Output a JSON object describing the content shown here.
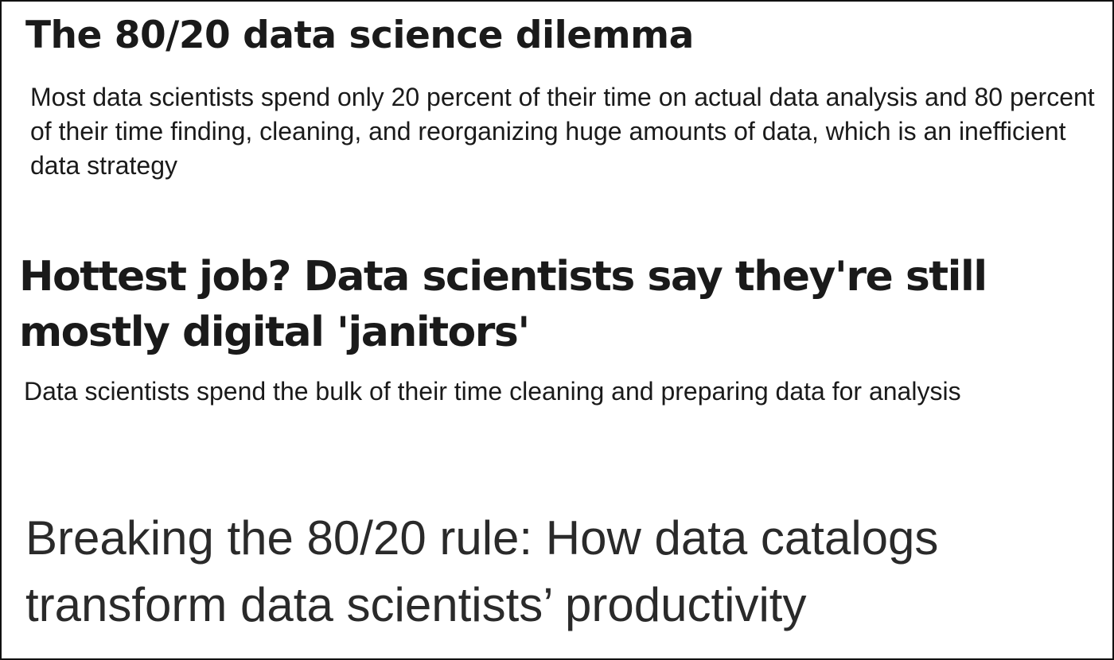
{
  "articles": [
    {
      "headline": "The 80/20 data science dilemma",
      "summary": "Most data scientists spend only 20 percent of their time on actual data analysis and 80 percent of their time finding, cleaning, and reorganizing huge amounts of data, which is an inefficient data strategy"
    },
    {
      "headline": "Hottest job? Data scientists say they're still mostly digital 'janitors'",
      "summary": "Data scientists spend the bulk of their time cleaning and preparing data for analysis"
    },
    {
      "headline": "Breaking the 80/20 rule: How data catalogs transform data scientists’ productivity"
    }
  ]
}
